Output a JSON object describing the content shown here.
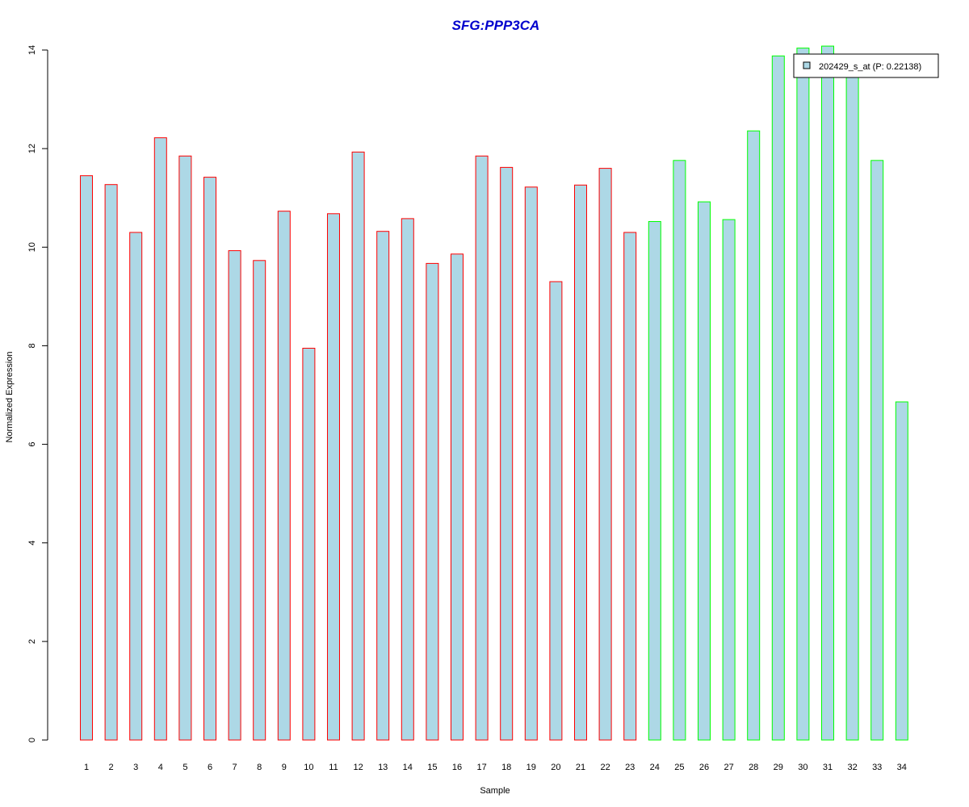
{
  "chart_data": {
    "type": "bar",
    "title": "SFG:PPP3CA",
    "xlabel": "Sample",
    "ylabel": "Normalized Expression",
    "ylim": [
      0,
      14
    ],
    "yticks": [
      "0",
      "2",
      "4",
      "6",
      "8",
      "10",
      "12",
      "14"
    ],
    "categories": [
      "1",
      "2",
      "3",
      "4",
      "5",
      "6",
      "7",
      "8",
      "9",
      "10",
      "11",
      "12",
      "13",
      "14",
      "15",
      "16",
      "17",
      "18",
      "19",
      "20",
      "21",
      "22",
      "23",
      "24",
      "25",
      "26",
      "27",
      "28",
      "29",
      "30",
      "31",
      "32",
      "33",
      "34"
    ],
    "series": [
      {
        "name": "202429_s_at (P: 0.22138)",
        "values": [
          11.45,
          11.27,
          10.3,
          12.22,
          11.85,
          11.42,
          9.93,
          9.73,
          10.73,
          7.95,
          10.68,
          11.93,
          10.32,
          10.58,
          9.67,
          9.86,
          11.85,
          11.62,
          11.22,
          9.3,
          11.26,
          11.6,
          10.3,
          10.52,
          11.76,
          10.92,
          10.56,
          12.36,
          13.88,
          14.04,
          14.08,
          13.56,
          11.76,
          6.86
        ],
        "groups": [
          "red",
          "red",
          "red",
          "red",
          "red",
          "red",
          "red",
          "red",
          "red",
          "red",
          "red",
          "red",
          "red",
          "red",
          "red",
          "red",
          "red",
          "red",
          "red",
          "red",
          "red",
          "red",
          "red",
          "green",
          "green",
          "green",
          "green",
          "green",
          "green",
          "green",
          "green",
          "green",
          "green",
          "green"
        ]
      }
    ],
    "legend": {
      "position": "top-right",
      "label": "202429_s_at (P: 0.22138)"
    },
    "colors": {
      "bar_fill": "#add8e6",
      "group_red": "#ff0000",
      "group_green": "#00ff00",
      "title": "#0000cd"
    },
    "grid": false
  }
}
